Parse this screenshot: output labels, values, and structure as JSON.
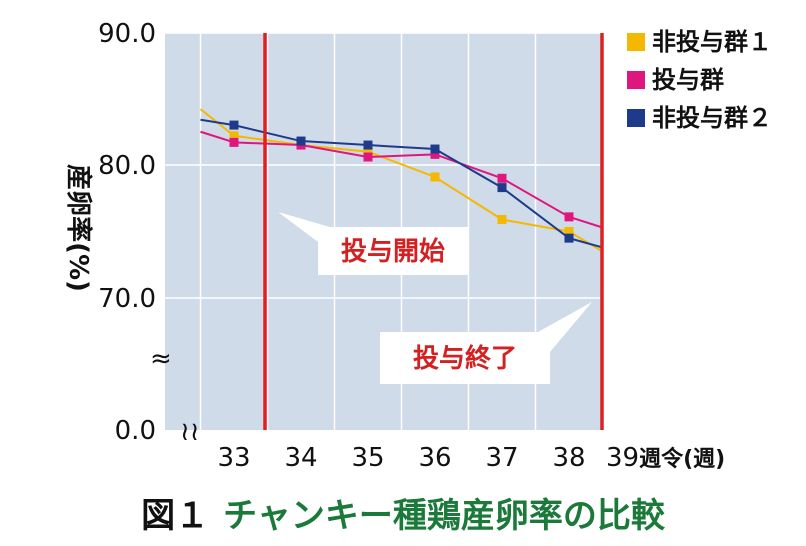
{
  "chart_data": {
    "type": "line",
    "title": "",
    "ylabel": "産卵率(%)",
    "xlabel": "週令(週)",
    "ylim": [
      0,
      90
    ],
    "y_axis_break": true,
    "y_break_symbol": "≈",
    "x_break_symbol": "≀≀",
    "y_ticks": [
      "90.0",
      "80.0",
      "70.0",
      "0.0"
    ],
    "x_ticks": [
      "33",
      "34",
      "35",
      "36",
      "37",
      "38",
      "39"
    ],
    "x_unit_suffix": "週令(週)",
    "legend_position": "right",
    "series": [
      {
        "name": "非投与群１",
        "color": "#f5b800",
        "x": [
          32.5,
          33,
          34,
          35,
          36,
          37,
          38,
          38.5
        ],
        "values": [
          84.2,
          82.2,
          81.5,
          81.0,
          79.1,
          75.9,
          75.0,
          73.5
        ]
      },
      {
        "name": "投与群",
        "color": "#e0167f",
        "x": [
          32.5,
          33,
          34,
          35,
          36,
          37,
          38,
          38.5
        ],
        "values": [
          82.5,
          81.7,
          81.5,
          80.6,
          80.8,
          79.0,
          76.1,
          75.3
        ]
      },
      {
        "name": "非投与群２",
        "color": "#1e3a8a",
        "x": [
          32.5,
          33,
          34,
          35,
          36,
          37,
          38,
          38.5
        ],
        "values": [
          83.4,
          83.0,
          81.8,
          81.5,
          81.2,
          78.3,
          74.5,
          73.8
        ]
      }
    ],
    "markers": [
      {
        "label": "投与開始",
        "x": 33.5,
        "color": "#e02020"
      },
      {
        "label": "投与終了",
        "x": 38.5,
        "color": "#e02020"
      }
    ]
  },
  "caption": {
    "prefix": "図１",
    "title": "チャンキー種鶏産卵率の比較"
  }
}
